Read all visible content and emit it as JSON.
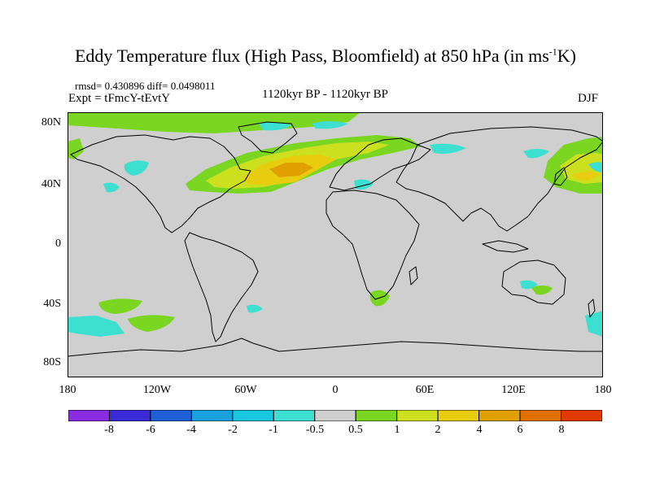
{
  "plot": {
    "title_main": "Eddy Temperature flux (High Pass, Bloomfield) at 850 hPa (in ms",
    "title_sup": "-1",
    "title_end": "K)",
    "stats": "rmsd= 0.430896  diff= 0.0498011",
    "experiment": "Expt = tFmcY-tEvtY",
    "period": "1120kyr BP - 1120kyr BP",
    "season": "DJF"
  },
  "axes": {
    "y_ticks": [
      "80N",
      "40N",
      "0",
      "40S",
      "80S"
    ],
    "x_ticks": [
      "180",
      "120W",
      "60W",
      "0",
      "60E",
      "120E",
      "180"
    ]
  },
  "colorbar": {
    "colors": [
      "#8a2be2",
      "#3a2bd6",
      "#1f5fd8",
      "#1aa0dc",
      "#19c7e0",
      "#3de0d0",
      "#cfcfcf",
      "#7ad620",
      "#cce020",
      "#e8cc10",
      "#e0a000",
      "#e07000",
      "#e03a00"
    ],
    "labels": [
      "-8",
      "-6",
      "-4",
      "-2",
      "-1",
      "-0.5",
      "0.5",
      "1",
      "2",
      "4",
      "6",
      "8"
    ]
  },
  "colors": {
    "ocean_land_fill": "#cfcfcf",
    "cyan": "#3de0d0",
    "green": "#7ad620",
    "yellow": "#cce020",
    "gold": "#e8cc10",
    "orange": "#e0a000"
  }
}
